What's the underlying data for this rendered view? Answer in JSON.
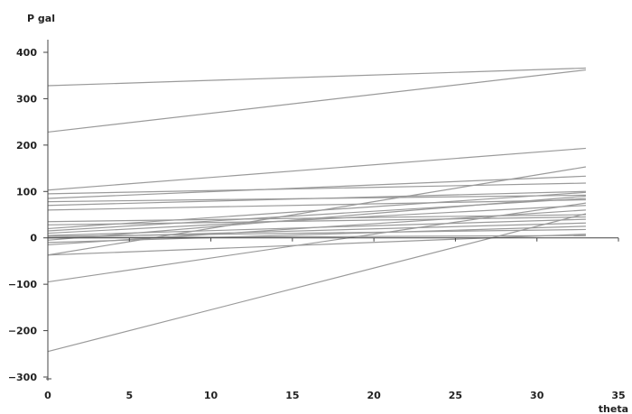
{
  "chart_data": {
    "type": "line",
    "title": "",
    "ylabel": "P  gal",
    "xlabel": "theta",
    "xlim": [
      0,
      35
    ],
    "ylim": [
      -300,
      400
    ],
    "xticks": [
      0,
      5,
      10,
      15,
      20,
      25,
      30,
      35
    ],
    "yticks": [
      -300,
      -200,
      -100,
      0,
      100,
      200,
      300,
      400
    ],
    "grid": false,
    "legend": "none",
    "line_color": "#9a9a9a",
    "x_extent": [
      0,
      33
    ],
    "series": [
      {
        "values": [
          328,
          366
        ]
      },
      {
        "values": [
          228,
          362
        ]
      },
      {
        "values": [
          103,
          193
        ]
      },
      {
        "values": [
          -37,
          153
        ]
      },
      {
        "values": [
          -95,
          75
        ]
      },
      {
        "values": [
          -245,
          52
        ]
      },
      {
        "values": [
          95,
          118
        ]
      },
      {
        "values": [
          85,
          133
        ]
      },
      {
        "values": [
          78,
          92
        ]
      },
      {
        "values": [
          70,
          100
        ]
      },
      {
        "values": [
          60,
          82
        ]
      },
      {
        "values": [
          35,
          50
        ]
      },
      {
        "values": [
          28,
          45
        ]
      },
      {
        "values": [
          20,
          98
        ]
      },
      {
        "values": [
          15,
          85
        ]
      },
      {
        "values": [
          10,
          70
        ]
      },
      {
        "values": [
          5,
          40
        ]
      },
      {
        "values": [
          0,
          32
        ]
      },
      {
        "values": [
          -5,
          90
        ]
      },
      {
        "values": [
          -10,
          25
        ]
      },
      {
        "values": [
          -15,
          60
        ]
      },
      {
        "values": [
          -37,
          8
        ]
      },
      {
        "values": [
          3,
          18
        ]
      },
      {
        "values": [
          0,
          5
        ]
      }
    ]
  }
}
